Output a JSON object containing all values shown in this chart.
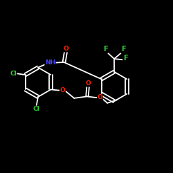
{
  "bg_color": "#000000",
  "bond_color": "#ffffff",
  "atom_colors": {
    "F": "#32cd32",
    "Cl": "#32cd32",
    "O": "#ff2200",
    "N": "#4444ff",
    "C": "#ffffff"
  },
  "figsize": [
    2.5,
    2.5
  ],
  "dpi": 100
}
